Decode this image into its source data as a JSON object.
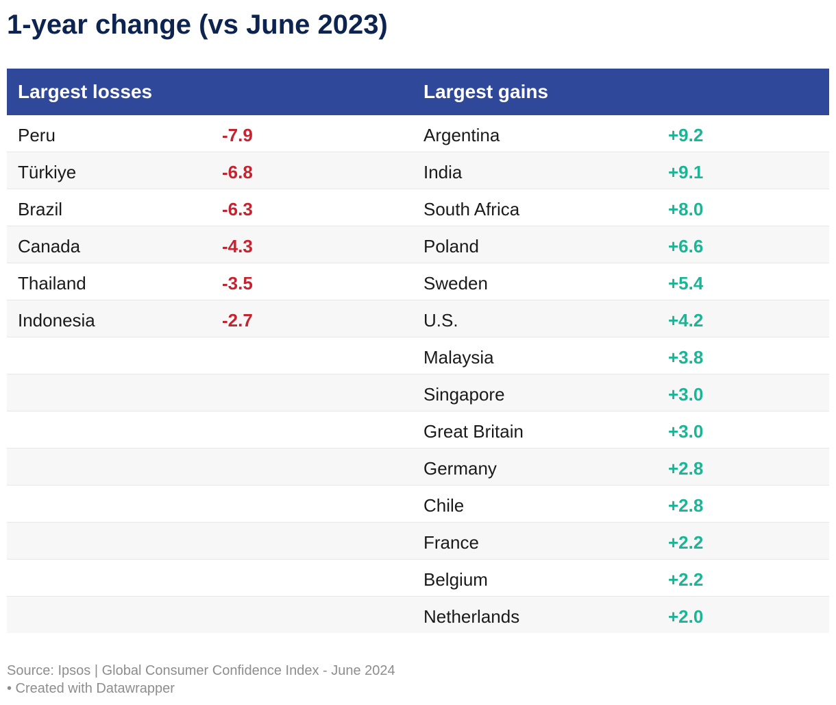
{
  "title": "1-year change (vs June 2023)",
  "colors": {
    "header_bg": "#30489a",
    "loss": "#c4232f",
    "gain": "#1bb595",
    "title": "#0d2350"
  },
  "chart_data": {
    "type": "table",
    "title": "1-year change (vs June 2023)",
    "columns": [
      "Largest losses",
      "Largest gains"
    ],
    "losses": [
      {
        "country": "Peru",
        "value": "-7.9"
      },
      {
        "country": "Türkiye",
        "value": "-6.8"
      },
      {
        "country": "Brazil",
        "value": "-6.3"
      },
      {
        "country": "Canada",
        "value": "-4.3"
      },
      {
        "country": "Thailand",
        "value": "-3.5"
      },
      {
        "country": "Indonesia",
        "value": "-2.7"
      }
    ],
    "gains": [
      {
        "country": "Argentina",
        "value": "+9.2"
      },
      {
        "country": "India",
        "value": "+9.1"
      },
      {
        "country": "South Africa",
        "value": "+8.0"
      },
      {
        "country": "Poland",
        "value": "+6.6"
      },
      {
        "country": "Sweden",
        "value": "+5.4"
      },
      {
        "country": "U.S.",
        "value": "+4.2"
      },
      {
        "country": "Malaysia",
        "value": "+3.8"
      },
      {
        "country": "Singapore",
        "value": "+3.0"
      },
      {
        "country": "Great Britain",
        "value": "+3.0"
      },
      {
        "country": "Germany",
        "value": "+2.8"
      },
      {
        "country": "Chile",
        "value": "+2.8"
      },
      {
        "country": "France",
        "value": "+2.2"
      },
      {
        "country": "Belgium",
        "value": "+2.2"
      },
      {
        "country": "Netherlands",
        "value": "+2.0"
      }
    ]
  },
  "footer": {
    "source": "Source: Ipsos | Global Consumer Confidence Index - June 2024",
    "credit": "• Created with Datawrapper"
  }
}
